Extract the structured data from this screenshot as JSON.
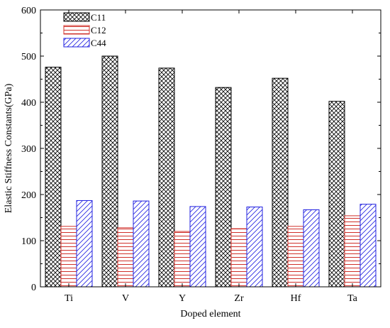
{
  "chart_data": {
    "type": "bar",
    "title": "",
    "xlabel": "Doped element",
    "ylabel": "Elastic Stiffness Constants(GPa)",
    "categories": [
      "Ti",
      "V",
      "Y",
      "Zr",
      "Hf",
      "Ta"
    ],
    "ylim": [
      0,
      600
    ],
    "yticks": [
      "0",
      "100",
      "200",
      "300",
      "400",
      "500",
      "600"
    ],
    "legend_position": "top-left",
    "grid": false,
    "series": [
      {
        "name": "C11",
        "values": [
          476,
          500,
          474,
          432,
          452,
          402
        ],
        "color": "#000000",
        "pattern": "crosshatch"
      },
      {
        "name": "C12",
        "values": [
          131,
          128,
          120,
          126,
          131,
          154
        ],
        "color": "#d0302a",
        "pattern": "horizontal"
      },
      {
        "name": "C44",
        "values": [
          187,
          186,
          174,
          173,
          167,
          179
        ],
        "color": "#2020e0",
        "pattern": "diagonal"
      }
    ]
  }
}
